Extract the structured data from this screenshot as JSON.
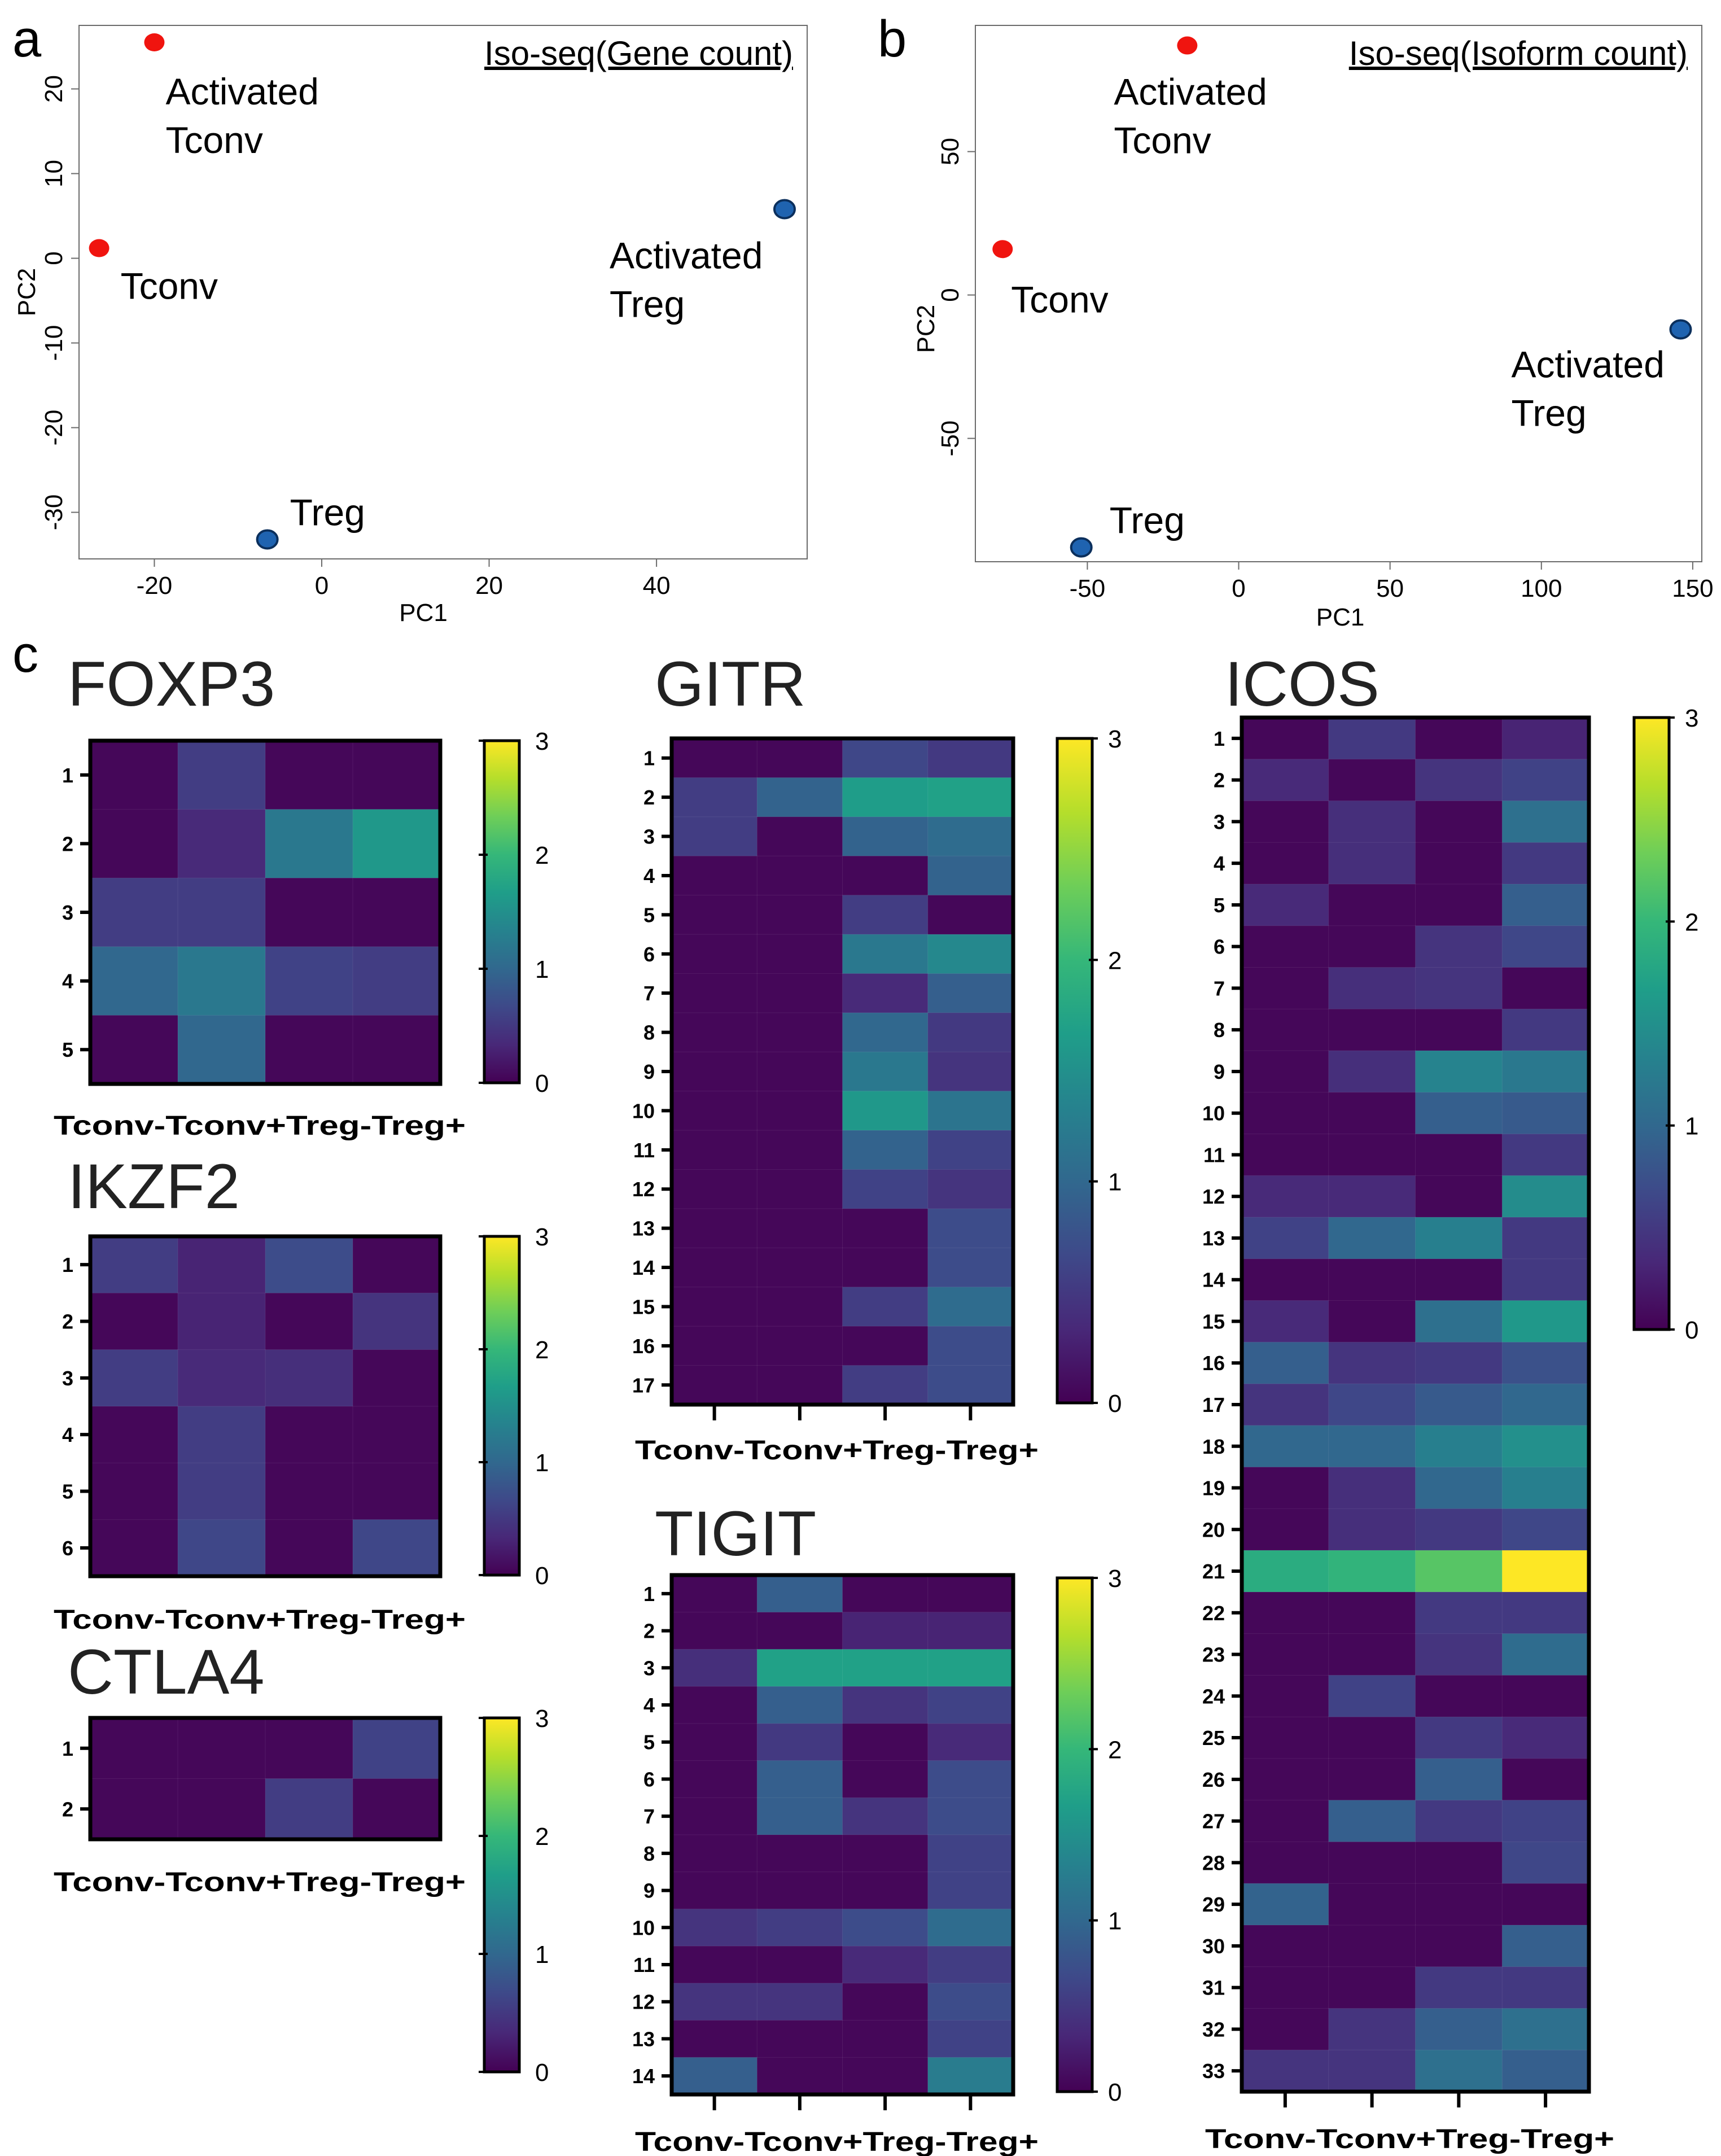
{
  "panels": {
    "a": "a",
    "b": "b",
    "c": "c"
  },
  "colors": {
    "conv": "#f0140f",
    "treg": "#1f63b0",
    "treg_edge": "#0b2f5c",
    "viridis": [
      "#440154",
      "#482878",
      "#3e4989",
      "#31688e",
      "#26828e",
      "#1f9e89",
      "#35b779",
      "#6ece58",
      "#b5de2b",
      "#fde725"
    ]
  },
  "chart_data": [
    {
      "id": "a",
      "type": "scatter",
      "title": "Iso-seq(Gene count)",
      "xlabel": "PC1",
      "ylabel": "PC2",
      "xlim": [
        -29,
        58
      ],
      "ylim": [
        -35.5,
        27.5
      ],
      "xticks": [
        -20,
        0,
        20,
        40
      ],
      "yticks": [
        -30,
        -20,
        -10,
        0,
        10,
        20
      ],
      "points": [
        {
          "name": "Activated Tconv",
          "x": -20,
          "y": 25.5,
          "group": "conv",
          "label_lines": [
            "Activated",
            "Tconv"
          ]
        },
        {
          "name": "Tconv",
          "x": -26.6,
          "y": 1.2,
          "group": "conv",
          "label_lines": [
            "Tconv"
          ]
        },
        {
          "name": "Activated Treg",
          "x": 55.3,
          "y": 5.8,
          "group": "treg",
          "label_lines": [
            "Activated",
            "Treg"
          ]
        },
        {
          "name": "Treg",
          "x": -6.5,
          "y": -33.2,
          "group": "treg",
          "label_lines": [
            "Treg"
          ]
        }
      ]
    },
    {
      "id": "b",
      "type": "scatter",
      "title": "Iso-seq(Isoform count)",
      "xlabel": "PC1",
      "ylabel": "PC2",
      "xlim": [
        -87,
        153
      ],
      "ylim": [
        -93,
        94
      ],
      "xticks": [
        -50,
        0,
        50,
        100,
        150
      ],
      "yticks": [
        -50,
        0,
        50
      ],
      "points": [
        {
          "name": "Activated Tconv",
          "x": -17,
          "y": 87,
          "group": "conv",
          "label_lines": [
            "Activated",
            "Tconv"
          ]
        },
        {
          "name": "Tconv",
          "x": -78,
          "y": 16,
          "group": "conv",
          "label_lines": [
            "Tconv"
          ]
        },
        {
          "name": "Activated Treg",
          "x": 146,
          "y": -12,
          "group": "treg",
          "label_lines": [
            "Activated",
            "Treg"
          ]
        },
        {
          "name": "Treg",
          "x": -52,
          "y": -88,
          "group": "treg",
          "label_lines": [
            "Treg"
          ]
        }
      ]
    },
    {
      "id": "FOXP3",
      "type": "heatmap",
      "title": "FOXP3",
      "columns": [
        "Tconv-",
        "Tconv+",
        "Treg-",
        "Treg+"
      ],
      "rows": [
        "1",
        "2",
        "3",
        "4",
        "5"
      ],
      "values": [
        [
          0.05,
          0.55,
          0.05,
          0.05
        ],
        [
          0.05,
          0.35,
          1.2,
          1.6
        ],
        [
          0.55,
          0.55,
          0.05,
          0.05
        ],
        [
          1.0,
          1.2,
          0.6,
          0.55
        ],
        [
          0.05,
          1.0,
          0.05,
          0.05
        ]
      ],
      "colorbar": {
        "min": 0,
        "max": 3,
        "ticks": [
          0,
          1,
          2,
          3
        ]
      }
    },
    {
      "id": "IKZF2",
      "type": "heatmap",
      "title": "IKZF2",
      "columns": [
        "Tconv-",
        "Tconv+",
        "Treg-",
        "Treg+"
      ],
      "rows": [
        "1",
        "2",
        "3",
        "4",
        "5",
        "6"
      ],
      "values": [
        [
          0.55,
          0.3,
          0.7,
          0.05
        ],
        [
          0.05,
          0.3,
          0.05,
          0.45
        ],
        [
          0.55,
          0.35,
          0.4,
          0.05
        ],
        [
          0.05,
          0.55,
          0.05,
          0.05
        ],
        [
          0.05,
          0.55,
          0.05,
          0.05
        ],
        [
          0.05,
          0.65,
          0.05,
          0.65
        ]
      ],
      "colorbar": {
        "min": 0,
        "max": 3,
        "ticks": [
          0,
          1,
          2,
          3
        ]
      }
    },
    {
      "id": "CTLA4",
      "type": "heatmap",
      "title": "CTLA4",
      "columns": [
        "Tconv-",
        "Tconv+",
        "Treg-",
        "Treg+"
      ],
      "rows": [
        "1",
        "2"
      ],
      "values": [
        [
          0.05,
          0.05,
          0.05,
          0.6
        ],
        [
          0.05,
          0.05,
          0.55,
          0.05
        ]
      ],
      "colorbar": {
        "min": 0,
        "max": 3,
        "ticks": [
          0,
          1,
          2,
          3
        ]
      }
    },
    {
      "id": "GITR",
      "type": "heatmap",
      "title": "GITR",
      "columns": [
        "Tconv-",
        "Tconv+",
        "Treg-",
        "Treg+"
      ],
      "rows": [
        "1",
        "2",
        "3",
        "4",
        "5",
        "6",
        "7",
        "8",
        "9",
        "10",
        "11",
        "12",
        "13",
        "14",
        "15",
        "16",
        "17"
      ],
      "values": [
        [
          0.05,
          0.05,
          0.65,
          0.5
        ],
        [
          0.55,
          0.95,
          1.65,
          1.7
        ],
        [
          0.55,
          0.05,
          0.95,
          1.05
        ],
        [
          0.05,
          0.05,
          0.05,
          0.95
        ],
        [
          0.05,
          0.05,
          0.55,
          0.05
        ],
        [
          0.05,
          0.05,
          1.2,
          1.4
        ],
        [
          0.05,
          0.05,
          0.35,
          0.9
        ],
        [
          0.05,
          0.05,
          1.0,
          0.5
        ],
        [
          0.05,
          0.05,
          1.2,
          0.45
        ],
        [
          0.05,
          0.05,
          1.6,
          1.15
        ],
        [
          0.05,
          0.05,
          0.95,
          0.6
        ],
        [
          0.05,
          0.05,
          0.6,
          0.45
        ],
        [
          0.05,
          0.05,
          0.05,
          0.7
        ],
        [
          0.05,
          0.05,
          0.05,
          0.7
        ],
        [
          0.05,
          0.05,
          0.55,
          1.05
        ],
        [
          0.05,
          0.05,
          0.05,
          0.7
        ],
        [
          0.05,
          0.05,
          0.55,
          0.7
        ]
      ],
      "colorbar": {
        "min": 0,
        "max": 3,
        "ticks": [
          0,
          1,
          2,
          3
        ]
      }
    },
    {
      "id": "TIGIT",
      "type": "heatmap",
      "title": "TIGIT",
      "columns": [
        "Tconv-",
        "Tconv+",
        "Treg-",
        "Treg+"
      ],
      "rows": [
        "1",
        "2",
        "3",
        "4",
        "5",
        "6",
        "7",
        "8",
        "9",
        "10",
        "11",
        "12",
        "13",
        "14"
      ],
      "values": [
        [
          0.05,
          0.9,
          0.05,
          0.05
        ],
        [
          0.05,
          0.05,
          0.3,
          0.3
        ],
        [
          0.4,
          1.7,
          1.7,
          1.7
        ],
        [
          0.05,
          0.9,
          0.45,
          0.6
        ],
        [
          0.05,
          0.5,
          0.05,
          0.35
        ],
        [
          0.05,
          0.9,
          0.05,
          0.7
        ],
        [
          0.05,
          0.9,
          0.45,
          0.7
        ],
        [
          0.05,
          0.05,
          0.05,
          0.6
        ],
        [
          0.05,
          0.05,
          0.05,
          0.6
        ],
        [
          0.45,
          0.55,
          0.7,
          1.05
        ],
        [
          0.05,
          0.05,
          0.35,
          0.55
        ],
        [
          0.45,
          0.45,
          0.05,
          0.7
        ],
        [
          0.05,
          0.05,
          0.05,
          0.6
        ],
        [
          0.9,
          0.05,
          0.05,
          1.25
        ]
      ],
      "colorbar": {
        "min": 0,
        "max": 3,
        "ticks": [
          0,
          1,
          2,
          3
        ]
      }
    },
    {
      "id": "ICOS",
      "type": "heatmap",
      "title": "ICOS",
      "columns": [
        "Tconv-",
        "Tconv+",
        "Treg-",
        "Treg+"
      ],
      "rows": [
        "1",
        "2",
        "3",
        "4",
        "5",
        "6",
        "7",
        "8",
        "9",
        "10",
        "11",
        "12",
        "13",
        "14",
        "15",
        "16",
        "17",
        "18",
        "19",
        "20",
        "21",
        "22",
        "23",
        "24",
        "25",
        "26",
        "27",
        "28",
        "29",
        "30",
        "31",
        "32",
        "33"
      ],
      "values": [
        [
          0.05,
          0.5,
          0.05,
          0.3
        ],
        [
          0.35,
          0.05,
          0.45,
          0.6
        ],
        [
          0.05,
          0.4,
          0.05,
          1.1
        ],
        [
          0.05,
          0.4,
          0.05,
          0.5
        ],
        [
          0.35,
          0.05,
          0.05,
          0.9
        ],
        [
          0.05,
          0.05,
          0.45,
          0.65
        ],
        [
          0.05,
          0.4,
          0.45,
          0.05
        ],
        [
          0.05,
          0.05,
          0.05,
          0.5
        ],
        [
          0.05,
          0.4,
          1.35,
          1.2
        ],
        [
          0.05,
          0.05,
          0.9,
          0.85
        ],
        [
          0.05,
          0.05,
          0.05,
          0.5
        ],
        [
          0.35,
          0.35,
          0.05,
          1.45
        ],
        [
          0.6,
          1.0,
          1.3,
          0.5
        ],
        [
          0.05,
          0.05,
          0.05,
          0.5
        ],
        [
          0.35,
          0.05,
          1.1,
          1.6
        ],
        [
          0.9,
          0.45,
          0.5,
          0.75
        ],
        [
          0.45,
          0.65,
          0.85,
          1.0
        ],
        [
          1.0,
          1.0,
          1.3,
          1.5
        ],
        [
          0.05,
          0.4,
          1.0,
          1.3
        ],
        [
          0.05,
          0.4,
          0.5,
          0.65
        ],
        [
          1.85,
          1.95,
          2.2,
          3.0
        ],
        [
          0.05,
          0.05,
          0.5,
          0.5
        ],
        [
          0.05,
          0.05,
          0.45,
          1.05
        ],
        [
          0.05,
          0.6,
          0.05,
          0.05
        ],
        [
          0.05,
          0.05,
          0.5,
          0.35
        ],
        [
          0.05,
          0.05,
          0.9,
          0.05
        ],
        [
          0.05,
          0.9,
          0.5,
          0.6
        ],
        [
          0.05,
          0.05,
          0.05,
          0.65
        ],
        [
          0.95,
          0.05,
          0.05,
          0.05
        ],
        [
          0.05,
          0.05,
          0.05,
          0.9
        ],
        [
          0.05,
          0.05,
          0.5,
          0.5
        ],
        [
          0.05,
          0.45,
          0.9,
          1.1
        ],
        [
          0.45,
          0.45,
          1.1,
          0.9
        ]
      ],
      "colorbar": {
        "min": 0,
        "max": 3,
        "ticks": [
          0,
          1,
          2,
          3
        ]
      }
    }
  ]
}
